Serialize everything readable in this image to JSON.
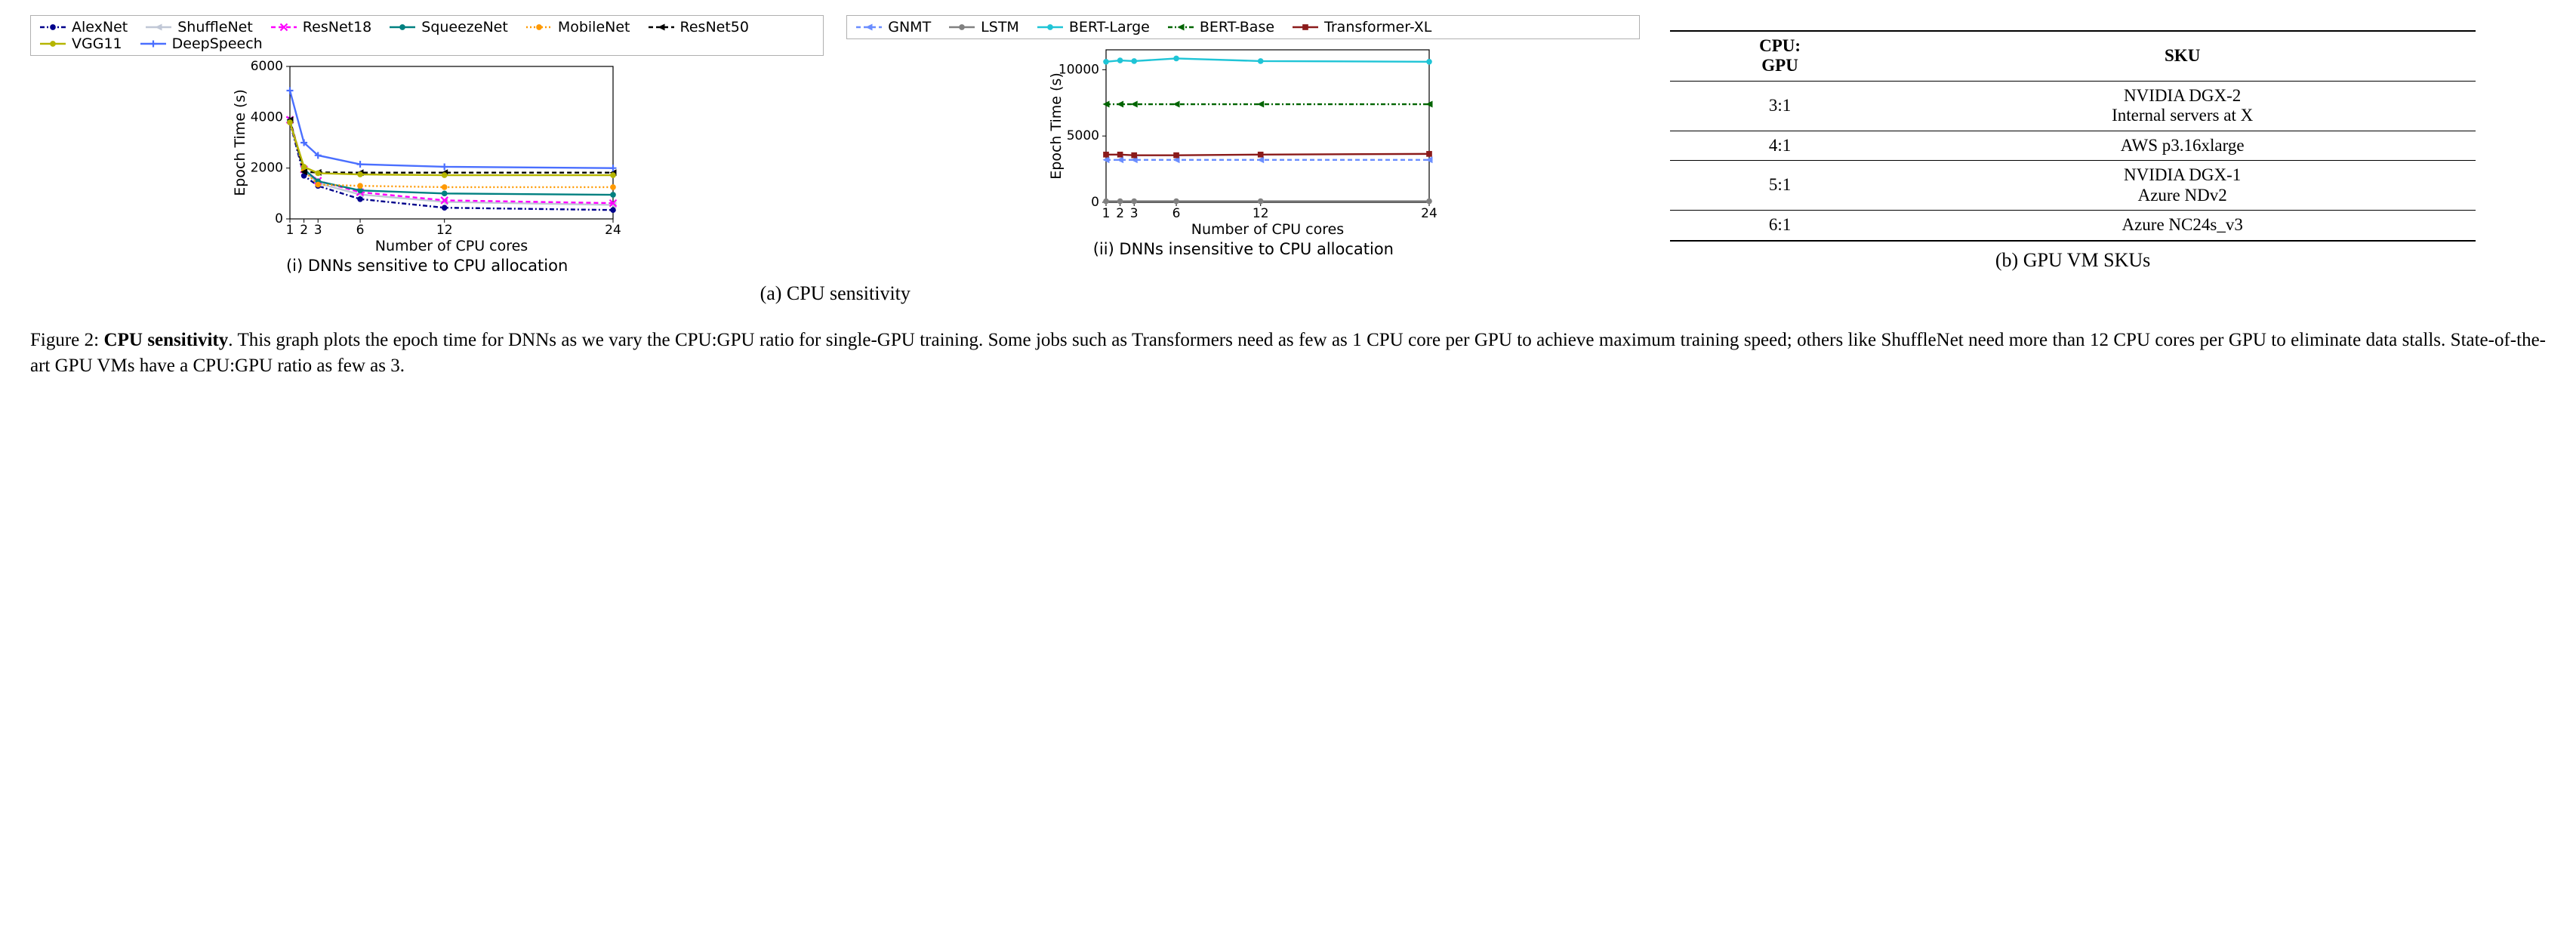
{
  "figure": {
    "panel_a_caption": "(a) CPU sensitivity",
    "panel_b_caption": "(b) GPU VM SKUs",
    "chart1": {
      "type": "line",
      "sub_caption": "(i) DNNs sensitive to CPU allocation",
      "xlabel": "Number of CPU cores",
      "ylabel": "Epoch Time (s)",
      "x_ticks": [
        1,
        2,
        3,
        6,
        12,
        24
      ],
      "y_ticks": [
        0,
        2000,
        4000,
        6000
      ],
      "xlim": [
        1,
        24
      ],
      "ylim": [
        0,
        6000
      ],
      "axis_fontsize": 19,
      "tick_fontsize": 17,
      "background_color": "#ffffff",
      "border_color": "#000000",
      "series": [
        {
          "name": "AlexNet",
          "color": "#00008b",
          "dash": "6,3,2,3",
          "marker": "circle",
          "values": [
            3800,
            1700,
            1300,
            780,
            440,
            350
          ]
        },
        {
          "name": "ShuffleNet",
          "color": "#c0c7d6",
          "dash": "none",
          "marker": "triangle-l",
          "values": [
            3850,
            1900,
            1400,
            960,
            670,
            550
          ]
        },
        {
          "name": "ResNet18",
          "color": "#ff00ff",
          "dash": "6,4",
          "marker": "x",
          "values": [
            3900,
            1950,
            1500,
            1050,
            730,
            620
          ]
        },
        {
          "name": "SqueezeNet",
          "color": "#008080",
          "dash": "none",
          "marker": "circle",
          "values": [
            3850,
            1950,
            1480,
            1120,
            1000,
            950
          ]
        },
        {
          "name": "MobileNet",
          "color": "#ff9900",
          "dash": "2,3",
          "marker": "circle",
          "values": [
            3800,
            1900,
            1350,
            1300,
            1250,
            1250
          ]
        },
        {
          "name": "ResNet50",
          "color": "#000000",
          "dash": "6,4",
          "marker": "triangle-l",
          "values": [
            3900,
            1850,
            1830,
            1820,
            1820,
            1820
          ]
        },
        {
          "name": "VGG11",
          "color": "#b5b500",
          "dash": "none",
          "marker": "circle",
          "values": [
            3800,
            2050,
            1800,
            1750,
            1720,
            1720
          ]
        },
        {
          "name": "DeepSpeech",
          "color": "#4a6fff",
          "dash": "none",
          "marker": "plus",
          "values": [
            5050,
            3000,
            2500,
            2150,
            2050,
            2000
          ]
        }
      ],
      "legend_cols": 3
    },
    "chart2": {
      "type": "line",
      "sub_caption": "(ii) DNNs insensitive to CPU allocation",
      "xlabel": "Number of CPU cores",
      "ylabel": "Epoch Time (s)",
      "x_ticks": [
        1,
        2,
        3,
        6,
        12,
        24
      ],
      "y_ticks": [
        0,
        5000,
        10000
      ],
      "xlim": [
        1,
        24
      ],
      "ylim": [
        0,
        11500
      ],
      "axis_fontsize": 19,
      "tick_fontsize": 17,
      "background_color": "#ffffff",
      "border_color": "#000000",
      "series": [
        {
          "name": "GNMT",
          "color": "#6a8dff",
          "dash": "6,4",
          "marker": "triangle-l",
          "values": [
            3200,
            3200,
            3200,
            3200,
            3200,
            3200
          ]
        },
        {
          "name": "LSTM",
          "color": "#808080",
          "dash": "none",
          "marker": "circle",
          "values": [
            80,
            80,
            80,
            80,
            80,
            80
          ]
        },
        {
          "name": "BERT-Large",
          "color": "#1fc4d6",
          "dash": "none",
          "marker": "circle",
          "values": [
            10600,
            10700,
            10650,
            10850,
            10650,
            10600
          ]
        },
        {
          "name": "BERT-Base",
          "color": "#006400",
          "dash": "6,3,2,3",
          "marker": "triangle-l",
          "values": [
            7400,
            7400,
            7400,
            7400,
            7400,
            7400
          ]
        },
        {
          "name": "Transformer-XL",
          "color": "#8b1a1a",
          "dash": "none",
          "marker": "square",
          "values": [
            3600,
            3600,
            3550,
            3550,
            3600,
            3650
          ]
        }
      ],
      "legend_cols": 3
    },
    "table": {
      "columns": [
        "CPU:\nGPU",
        "SKU"
      ],
      "rows": [
        [
          "3:1",
          "NVIDIA DGX-2\nInternal servers at X"
        ],
        [
          "4:1",
          "AWS p3.16xlarge"
        ],
        [
          "5:1",
          "NVIDIA DGX-1\nAzure NDv2"
        ],
        [
          "6:1",
          "Azure NC24s_v3"
        ]
      ],
      "header_fontsize": 23,
      "cell_fontsize": 23
    },
    "main_caption_prefix": "Figure 2: ",
    "main_caption_bold": "CPU sensitivity",
    "main_caption_rest": ". This graph plots the epoch time for DNNs as we vary the CPU:GPU ratio for single-GPU training. Some jobs such as Transformers need as few as 1 CPU core per GPU to achieve maximum training speed; others like ShuffleNet need more than 12 CPU cores per GPU to eliminate data stalls. State-of-the-art GPU VMs have a CPU:GPU ratio as few as 3."
  }
}
